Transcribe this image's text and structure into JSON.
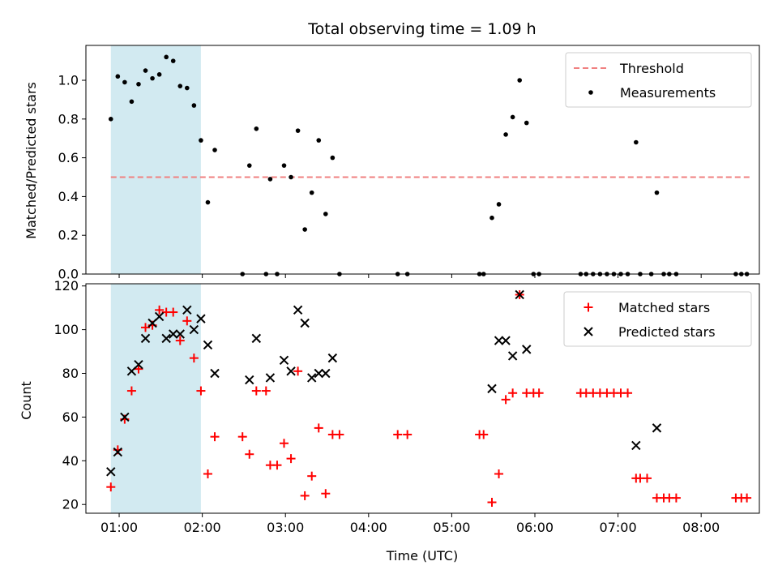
{
  "chart_data": [
    {
      "type": "scatter",
      "title": "Total observing time = 1.09 h",
      "xlabel": "",
      "ylabel": "Matched/Predicted stars",
      "ylim": [
        0,
        1.18
      ],
      "yticks": [
        "0.0",
        "0.2",
        "0.4",
        "0.6",
        "0.8",
        "1.0"
      ],
      "ytick_values": [
        0,
        0.2,
        0.4,
        0.6,
        0.8,
        1.0
      ],
      "xlim": [
        "00:36",
        "08:42"
      ],
      "shaded_interval": [
        "00:54",
        "01:59"
      ],
      "shaded_color": "#add8e6",
      "legend_position": "upper right",
      "threshold": {
        "name": "Threshold",
        "value": 0.5,
        "x": [
          "00:54",
          "08:35"
        ],
        "color": "#f08080"
      },
      "series": [
        {
          "name": "Measurements",
          "color": "#000000",
          "marker": "dot",
          "points": [
            [
              "00:54",
              0.8
            ],
            [
              "00:59",
              1.02
            ],
            [
              "01:04",
              0.99
            ],
            [
              "01:09",
              0.89
            ],
            [
              "01:14",
              0.98
            ],
            [
              "01:19",
              1.05
            ],
            [
              "01:24",
              1.01
            ],
            [
              "01:29",
              1.03
            ],
            [
              "01:34",
              1.12
            ],
            [
              "01:39",
              1.1
            ],
            [
              "01:44",
              0.97
            ],
            [
              "01:49",
              0.96
            ],
            [
              "01:54",
              0.87
            ],
            [
              "01:59",
              0.69
            ],
            [
              "02:04",
              0.37
            ],
            [
              "02:09",
              0.64
            ],
            [
              "02:29",
              0.0
            ],
            [
              "02:34",
              0.56
            ],
            [
              "02:39",
              0.75
            ],
            [
              "02:46",
              0.0
            ],
            [
              "02:49",
              0.49
            ],
            [
              "02:54",
              0.0
            ],
            [
              "02:59",
              0.56
            ],
            [
              "03:04",
              0.5
            ],
            [
              "03:09",
              0.74
            ],
            [
              "03:14",
              0.23
            ],
            [
              "03:19",
              0.42
            ],
            [
              "03:24",
              0.69
            ],
            [
              "03:29",
              0.31
            ],
            [
              "03:34",
              0.6
            ],
            [
              "03:39",
              0.0
            ],
            [
              "04:21",
              0.0
            ],
            [
              "04:28",
              0.0
            ],
            [
              "05:20",
              0.0
            ],
            [
              "05:23",
              0.0
            ],
            [
              "05:29",
              0.29
            ],
            [
              "05:34",
              0.36
            ],
            [
              "05:39",
              0.72
            ],
            [
              "05:44",
              0.81
            ],
            [
              "05:49",
              1.0
            ],
            [
              "05:54",
              0.78
            ],
            [
              "05:59",
              0.0
            ],
            [
              "06:03",
              0.0
            ],
            [
              "06:33",
              0.0
            ],
            [
              "06:37",
              0.0
            ],
            [
              "06:42",
              0.0
            ],
            [
              "06:47",
              0.0
            ],
            [
              "06:52",
              0.0
            ],
            [
              "06:57",
              0.0
            ],
            [
              "07:02",
              0.0
            ],
            [
              "07:07",
              0.0
            ],
            [
              "07:13",
              0.68
            ],
            [
              "07:16",
              0.0
            ],
            [
              "07:24",
              0.0
            ],
            [
              "07:28",
              0.42
            ],
            [
              "07:33",
              0.0
            ],
            [
              "07:37",
              0.0
            ],
            [
              "07:42",
              0.0
            ],
            [
              "08:25",
              0.0
            ],
            [
              "08:29",
              0.0
            ],
            [
              "08:33",
              0.0
            ]
          ]
        }
      ]
    },
    {
      "type": "scatter",
      "title": "",
      "xlabel": "Time (UTC)",
      "ylabel": "Count",
      "ylim": [
        16,
        121
      ],
      "yticks": [
        "20",
        "40",
        "60",
        "80",
        "100",
        "120"
      ],
      "ytick_values": [
        20,
        40,
        60,
        80,
        100,
        120
      ],
      "xlim": [
        "00:36",
        "08:42"
      ],
      "xticks": [
        "01:00",
        "02:00",
        "03:00",
        "04:00",
        "05:00",
        "06:00",
        "07:00",
        "08:00"
      ],
      "shaded_interval": [
        "00:54",
        "01:59"
      ],
      "shaded_color": "#add8e6",
      "legend_position": "upper right",
      "series": [
        {
          "name": "Matched stars",
          "color": "#ff0000",
          "marker": "plus",
          "points": [
            [
              "00:54",
              28
            ],
            [
              "00:59",
              45
            ],
            [
              "01:04",
              59
            ],
            [
              "01:09",
              72
            ],
            [
              "01:14",
              82
            ],
            [
              "01:19",
              101
            ],
            [
              "01:24",
              102
            ],
            [
              "01:29",
              109
            ],
            [
              "01:34",
              108
            ],
            [
              "01:39",
              108
            ],
            [
              "01:44",
              95
            ],
            [
              "01:49",
              104
            ],
            [
              "01:54",
              87
            ],
            [
              "01:59",
              72
            ],
            [
              "02:04",
              34
            ],
            [
              "02:09",
              51
            ],
            [
              "02:29",
              51
            ],
            [
              "02:34",
              43
            ],
            [
              "02:39",
              72
            ],
            [
              "02:46",
              72
            ],
            [
              "02:49",
              38
            ],
            [
              "02:54",
              38
            ],
            [
              "02:59",
              48
            ],
            [
              "03:04",
              41
            ],
            [
              "03:09",
              81
            ],
            [
              "03:14",
              24
            ],
            [
              "03:19",
              33
            ],
            [
              "03:24",
              55
            ],
            [
              "03:29",
              25
            ],
            [
              "03:34",
              52
            ],
            [
              "03:39",
              52
            ],
            [
              "04:21",
              52
            ],
            [
              "04:28",
              52
            ],
            [
              "05:20",
              52
            ],
            [
              "05:23",
              52
            ],
            [
              "05:29",
              21
            ],
            [
              "05:34",
              34
            ],
            [
              "05:39",
              68
            ],
            [
              "05:44",
              71
            ],
            [
              "05:49",
              116
            ],
            [
              "05:54",
              71
            ],
            [
              "05:59",
              71
            ],
            [
              "06:03",
              71
            ],
            [
              "06:33",
              71
            ],
            [
              "06:37",
              71
            ],
            [
              "06:42",
              71
            ],
            [
              "06:47",
              71
            ],
            [
              "06:52",
              71
            ],
            [
              "06:57",
              71
            ],
            [
              "07:02",
              71
            ],
            [
              "07:07",
              71
            ],
            [
              "07:13",
              32
            ],
            [
              "07:16",
              32
            ],
            [
              "07:21",
              32
            ],
            [
              "07:28",
              23
            ],
            [
              "07:33",
              23
            ],
            [
              "07:37",
              23
            ],
            [
              "07:42",
              23
            ],
            [
              "08:25",
              23
            ],
            [
              "08:29",
              23
            ],
            [
              "08:33",
              23
            ]
          ]
        },
        {
          "name": "Predicted stars",
          "color": "#000000",
          "marker": "x",
          "points": [
            [
              "00:54",
              35
            ],
            [
              "00:59",
              44
            ],
            [
              "01:04",
              60
            ],
            [
              "01:09",
              81
            ],
            [
              "01:14",
              84
            ],
            [
              "01:19",
              96
            ],
            [
              "01:24",
              103
            ],
            [
              "01:29",
              106
            ],
            [
              "01:34",
              96
            ],
            [
              "01:39",
              98
            ],
            [
              "01:44",
              98
            ],
            [
              "01:49",
              109
            ],
            [
              "01:54",
              100
            ],
            [
              "01:59",
              105
            ],
            [
              "02:04",
              93
            ],
            [
              "02:09",
              80
            ],
            [
              "02:34",
              77
            ],
            [
              "02:39",
              96
            ],
            [
              "02:49",
              78
            ],
            [
              "02:59",
              86
            ],
            [
              "03:04",
              81
            ],
            [
              "03:09",
              109
            ],
            [
              "03:14",
              103
            ],
            [
              "03:19",
              78
            ],
            [
              "03:24",
              80
            ],
            [
              "03:29",
              80
            ],
            [
              "03:34",
              87
            ],
            [
              "05:29",
              73
            ],
            [
              "05:34",
              95
            ],
            [
              "05:39",
              95
            ],
            [
              "05:44",
              88
            ],
            [
              "05:49",
              116
            ],
            [
              "05:54",
              91
            ],
            [
              "07:13",
              47
            ],
            [
              "07:28",
              55
            ]
          ]
        }
      ]
    }
  ]
}
